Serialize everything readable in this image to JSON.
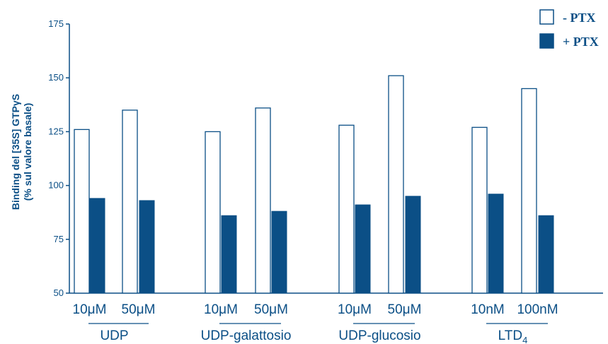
{
  "colors": {
    "ink": "#0b4f86",
    "bar_fill": "#0b4f86",
    "open_fill": "#ffffff"
  },
  "chart_data": {
    "type": "bar",
    "ylabel_line1": "Binding del [35S] GTPγS",
    "ylabel_line2": "(% sul valore basale)",
    "ylim": [
      50,
      175
    ],
    "yticks": [
      "50",
      "75",
      "100",
      "125",
      "150",
      "175"
    ],
    "grid": false,
    "legend_position": "top-right",
    "legend": [
      {
        "label": "- PTX",
        "style": "open"
      },
      {
        "label": "+ PTX",
        "style": "filled"
      }
    ],
    "groups": [
      {
        "label": "UDP",
        "doses": [
          "10μM",
          "50μM"
        ]
      },
      {
        "label": "UDP-galattosio",
        "doses": [
          "10μM",
          "50μM"
        ]
      },
      {
        "label": "UDP-glucosio",
        "doses": [
          "10μM",
          "50μM"
        ]
      },
      {
        "label": "LTD",
        "label_sub": "4",
        "doses": [
          "10nM",
          "100nM"
        ]
      }
    ],
    "series": [
      {
        "name": "- PTX",
        "values": [
          126,
          135,
          125,
          136,
          128,
          151,
          127,
          145
        ]
      },
      {
        "name": "+ PTX",
        "values": [
          94,
          93,
          86,
          88,
          91,
          95,
          96,
          86
        ]
      }
    ]
  }
}
